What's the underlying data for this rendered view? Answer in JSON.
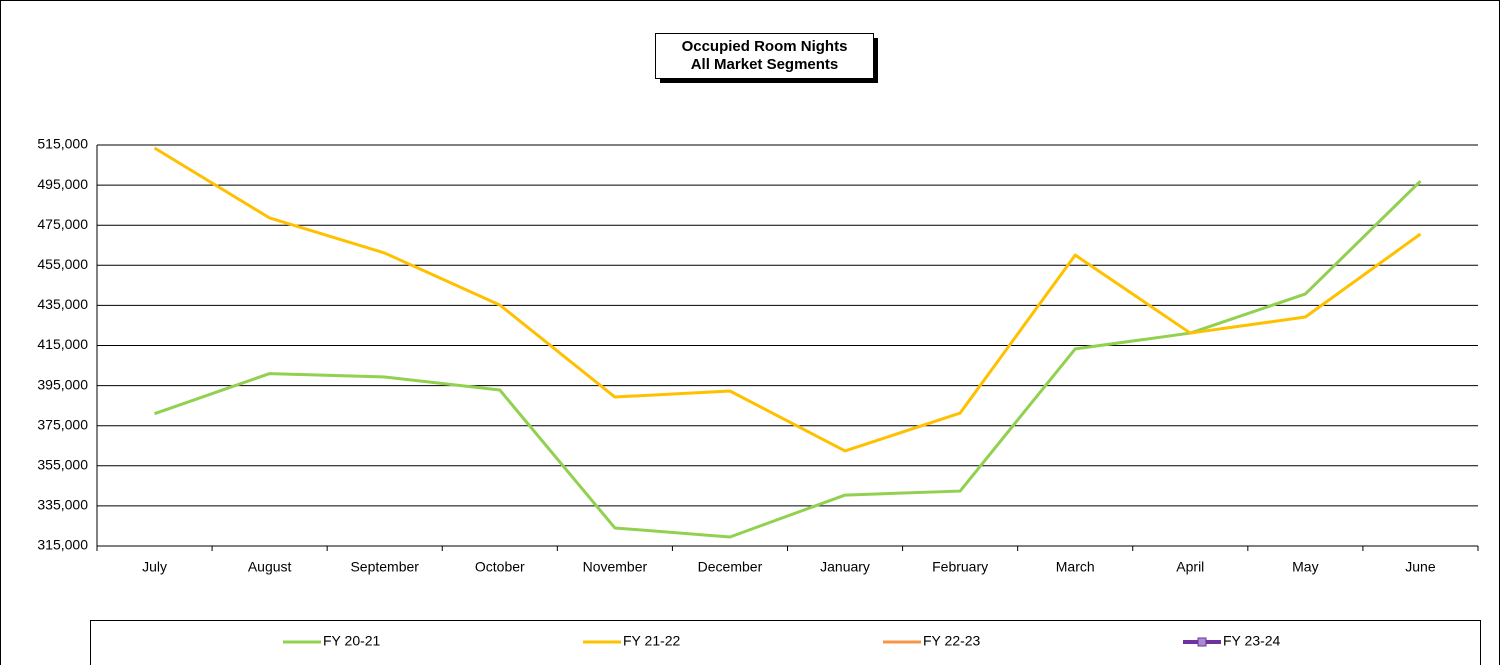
{
  "chart_data": {
    "type": "line",
    "title": [
      "Occupied Room Nights",
      "All Market Segments"
    ],
    "categories": [
      "July",
      "August",
      "September",
      "October",
      "November",
      "December",
      "January",
      "February",
      "March",
      "April",
      "May",
      "June"
    ],
    "series": [
      {
        "name": "FY 20-21",
        "color": "#92d050",
        "values": [
          381000,
          401000,
          399300,
          392800,
          324000,
          319500,
          340400,
          342400,
          413300,
          421200,
          440700,
          497000
        ]
      },
      {
        "name": "FY 21-22",
        "color": "#ffc000",
        "values": [
          513500,
          478600,
          461100,
          435200,
          389300,
          392300,
          362400,
          381300,
          460100,
          421200,
          429200,
          470600
        ]
      },
      {
        "name": "FY 22-23",
        "color": "#f79646",
        "values": [
          null,
          null,
          null,
          null,
          null,
          null,
          null,
          null,
          null,
          null,
          null,
          null
        ]
      },
      {
        "name": "FY 23-24",
        "color": "#7030a0",
        "marker": "square",
        "values": [
          null,
          null,
          null,
          null,
          null,
          null,
          null,
          null,
          null,
          null,
          null,
          null
        ]
      }
    ],
    "ylim": [
      315000,
      515000
    ],
    "yticks": [
      {
        "value": 315000,
        "label": "315,000"
      },
      {
        "value": 335000,
        "label": "335,000"
      },
      {
        "value": 355000,
        "label": "355,000"
      },
      {
        "value": 375000,
        "label": "375,000"
      },
      {
        "value": 395000,
        "label": "395,000"
      },
      {
        "value": 415000,
        "label": "415,000"
      },
      {
        "value": 435000,
        "label": "435,000"
      },
      {
        "value": 455000,
        "label": "455,000"
      },
      {
        "value": 475000,
        "label": "475,000"
      },
      {
        "value": 495000,
        "label": "495,000"
      },
      {
        "value": 515000,
        "label": "515,000"
      }
    ],
    "grid": true,
    "legend": "bottom"
  }
}
